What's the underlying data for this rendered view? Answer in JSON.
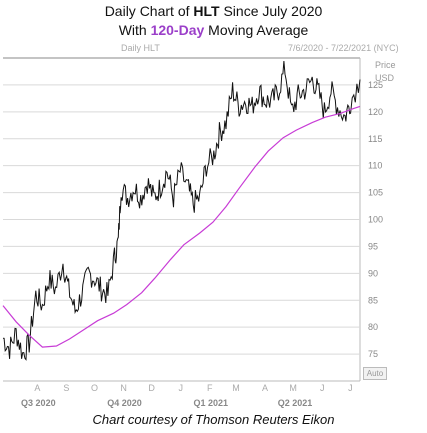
{
  "title": {
    "line1_prefix": "Daily Chart of ",
    "ticker": "HLT",
    "line1_suffix": " Since July 2020",
    "line2_prefix": "With ",
    "ma_label": "120-Day",
    "line2_suffix": " Moving Average"
  },
  "chart_header": {
    "series_label": "Daily HLT",
    "date_range": "7/6/2020 - 7/22/2021 (NYC)"
  },
  "auto_button": "Auto",
  "credit": "Chart courtesy of Thomson Reuters Eikon",
  "chart_data": {
    "type": "line",
    "ylabel": "Price\nUSD",
    "ylim": [
      70,
      130
    ],
    "yticks": [
      75,
      80,
      85,
      90,
      95,
      100,
      105,
      110,
      115,
      120,
      125
    ],
    "month_ticks": [
      "A",
      "S",
      "O",
      "N",
      "D",
      "J",
      "F",
      "M",
      "A",
      "M",
      "J",
      "J"
    ],
    "quarter_ticks": [
      "Q3 2020",
      "Q4 2020",
      "Q1 2021",
      "Q2 2021"
    ],
    "x_start": "2020-07-06",
    "x_end": "2021-07-22",
    "colors": {
      "price": "#111111",
      "ma": "#c83cd6",
      "grid": "#d9d9d9",
      "axis": "#999999"
    },
    "series": [
      {
        "name": "HLT",
        "role": "price",
        "points": [
          [
            "2020-07-06",
            78
          ],
          [
            "2020-07-13",
            76
          ],
          [
            "2020-07-20",
            79
          ],
          [
            "2020-07-27",
            75
          ],
          [
            "2020-08-03",
            77
          ],
          [
            "2020-08-10",
            86
          ],
          [
            "2020-08-17",
            84
          ],
          [
            "2020-08-24",
            89
          ],
          [
            "2020-08-31",
            87
          ],
          [
            "2020-09-08",
            92
          ],
          [
            "2020-09-14",
            87
          ],
          [
            "2020-09-21",
            83
          ],
          [
            "2020-09-28",
            86
          ],
          [
            "2020-10-05",
            90
          ],
          [
            "2020-10-12",
            89
          ],
          [
            "2020-10-19",
            87
          ],
          [
            "2020-10-26",
            86
          ],
          [
            "2020-11-02",
            93
          ],
          [
            "2020-11-06",
            96
          ],
          [
            "2020-11-09",
            106
          ],
          [
            "2020-11-16",
            104
          ],
          [
            "2020-11-23",
            106
          ],
          [
            "2020-11-30",
            104
          ],
          [
            "2020-12-07",
            107
          ],
          [
            "2020-12-14",
            104
          ],
          [
            "2020-12-21",
            106
          ],
          [
            "2020-12-28",
            109
          ],
          [
            "2021-01-04",
            104
          ],
          [
            "2021-01-11",
            109
          ],
          [
            "2021-01-19",
            106
          ],
          [
            "2021-01-25",
            103
          ],
          [
            "2021-02-01",
            104
          ],
          [
            "2021-02-08",
            110
          ],
          [
            "2021-02-16",
            112
          ],
          [
            "2021-02-22",
            116
          ],
          [
            "2021-03-01",
            118
          ],
          [
            "2021-03-08",
            124
          ],
          [
            "2021-03-15",
            121
          ],
          [
            "2021-03-22",
            122
          ],
          [
            "2021-03-29",
            121
          ],
          [
            "2021-04-05",
            124
          ],
          [
            "2021-04-12",
            122
          ],
          [
            "2021-04-19",
            122
          ],
          [
            "2021-04-26",
            124
          ],
          [
            "2021-05-03",
            128
          ],
          [
            "2021-05-10",
            120
          ],
          [
            "2021-05-17",
            123
          ],
          [
            "2021-05-24",
            124
          ],
          [
            "2021-06-01",
            126
          ],
          [
            "2021-06-07",
            124
          ],
          [
            "2021-06-14",
            120
          ],
          [
            "2021-06-21",
            124
          ],
          [
            "2021-06-28",
            121
          ],
          [
            "2021-07-06",
            119
          ],
          [
            "2021-07-12",
            122
          ],
          [
            "2021-07-22",
            126
          ]
        ]
      },
      {
        "name": "120-Day",
        "role": "moving_average",
        "points": [
          [
            "2020-07-06",
            84
          ],
          [
            "2020-07-20",
            81
          ],
          [
            "2020-08-03",
            78.5
          ],
          [
            "2020-08-17",
            76.3
          ],
          [
            "2020-09-01",
            76.5
          ],
          [
            "2020-09-15",
            77.8
          ],
          [
            "2020-10-01",
            79.6
          ],
          [
            "2020-10-15",
            81.2
          ],
          [
            "2020-11-01",
            82.6
          ],
          [
            "2020-11-15",
            84.2
          ],
          [
            "2020-12-01",
            86.4
          ],
          [
            "2020-12-15",
            89.1
          ],
          [
            "2021-01-01",
            92.6
          ],
          [
            "2021-01-15",
            95.3
          ],
          [
            "2021-02-01",
            97.5
          ],
          [
            "2021-02-15",
            99.5
          ],
          [
            "2021-03-01",
            102.4
          ],
          [
            "2021-03-15",
            105.8
          ],
          [
            "2021-04-01",
            109.8
          ],
          [
            "2021-04-15",
            112.7
          ],
          [
            "2021-05-01",
            115.2
          ],
          [
            "2021-05-15",
            116.6
          ],
          [
            "2021-06-01",
            118.0
          ],
          [
            "2021-06-15",
            119.0
          ],
          [
            "2021-07-01",
            119.7
          ],
          [
            "2021-07-15",
            120.6
          ],
          [
            "2021-07-22",
            121.0
          ]
        ]
      }
    ]
  }
}
